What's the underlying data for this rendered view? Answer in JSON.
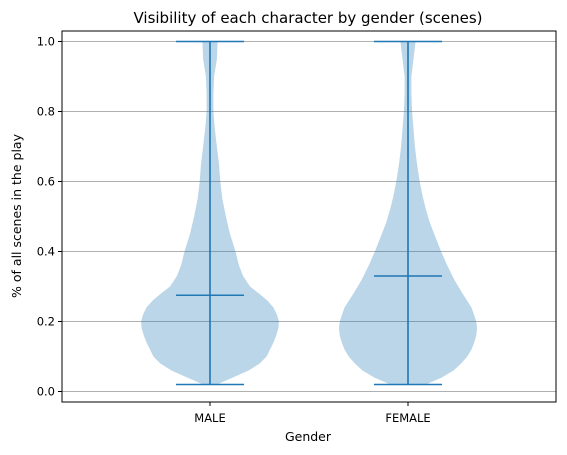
{
  "chart_data": {
    "type": "violin",
    "title": "Visibility of each character by gender (scenes)",
    "xlabel": "Gender",
    "ylabel": "% of all scenes in the play",
    "ylim": [
      -0.03,
      1.03
    ],
    "yticks": [
      0.0,
      0.2,
      0.4,
      0.6,
      0.8,
      1.0
    ],
    "ytick_labels": [
      "0.0",
      "0.2",
      "0.4",
      "0.6",
      "0.8",
      "1.0"
    ],
    "grid": "horizontal",
    "categories": [
      "MALE",
      "FEMALE"
    ],
    "series": [
      {
        "category": "MALE",
        "min": 0.02,
        "max": 1.0,
        "median": 0.275,
        "density_profile": [
          [
            0.02,
            0.1
          ],
          [
            0.04,
            0.33
          ],
          [
            0.06,
            0.56
          ],
          [
            0.08,
            0.72
          ],
          [
            0.1,
            0.82
          ],
          [
            0.12,
            0.87
          ],
          [
            0.14,
            0.92
          ],
          [
            0.16,
            0.96
          ],
          [
            0.18,
            0.99
          ],
          [
            0.2,
            1.0
          ],
          [
            0.22,
            0.97
          ],
          [
            0.24,
            0.92
          ],
          [
            0.26,
            0.83
          ],
          [
            0.28,
            0.71
          ],
          [
            0.3,
            0.58
          ],
          [
            0.33,
            0.48
          ],
          [
            0.36,
            0.42
          ],
          [
            0.4,
            0.37
          ],
          [
            0.45,
            0.29
          ],
          [
            0.5,
            0.23
          ],
          [
            0.55,
            0.18
          ],
          [
            0.6,
            0.15
          ],
          [
            0.65,
            0.13
          ],
          [
            0.7,
            0.1
          ],
          [
            0.75,
            0.07
          ],
          [
            0.8,
            0.05
          ],
          [
            0.85,
            0.05
          ],
          [
            0.9,
            0.06
          ],
          [
            0.95,
            0.1
          ],
          [
            1.0,
            0.11
          ]
        ]
      },
      {
        "category": "FEMALE",
        "min": 0.02,
        "max": 1.0,
        "median": 0.33,
        "density_profile": [
          [
            0.02,
            0.26
          ],
          [
            0.04,
            0.49
          ],
          [
            0.06,
            0.66
          ],
          [
            0.08,
            0.77
          ],
          [
            0.1,
            0.86
          ],
          [
            0.12,
            0.92
          ],
          [
            0.14,
            0.96
          ],
          [
            0.16,
            0.99
          ],
          [
            0.18,
            1.0
          ],
          [
            0.2,
            0.99
          ],
          [
            0.24,
            0.92
          ],
          [
            0.28,
            0.79
          ],
          [
            0.32,
            0.67
          ],
          [
            0.36,
            0.57
          ],
          [
            0.4,
            0.48
          ],
          [
            0.44,
            0.4
          ],
          [
            0.48,
            0.32
          ],
          [
            0.52,
            0.26
          ],
          [
            0.56,
            0.21
          ],
          [
            0.6,
            0.17
          ],
          [
            0.65,
            0.13
          ],
          [
            0.7,
            0.1
          ],
          [
            0.75,
            0.08
          ],
          [
            0.8,
            0.06
          ],
          [
            0.85,
            0.05
          ],
          [
            0.9,
            0.05
          ],
          [
            0.95,
            0.08
          ],
          [
            1.0,
            0.11
          ]
        ]
      }
    ]
  }
}
